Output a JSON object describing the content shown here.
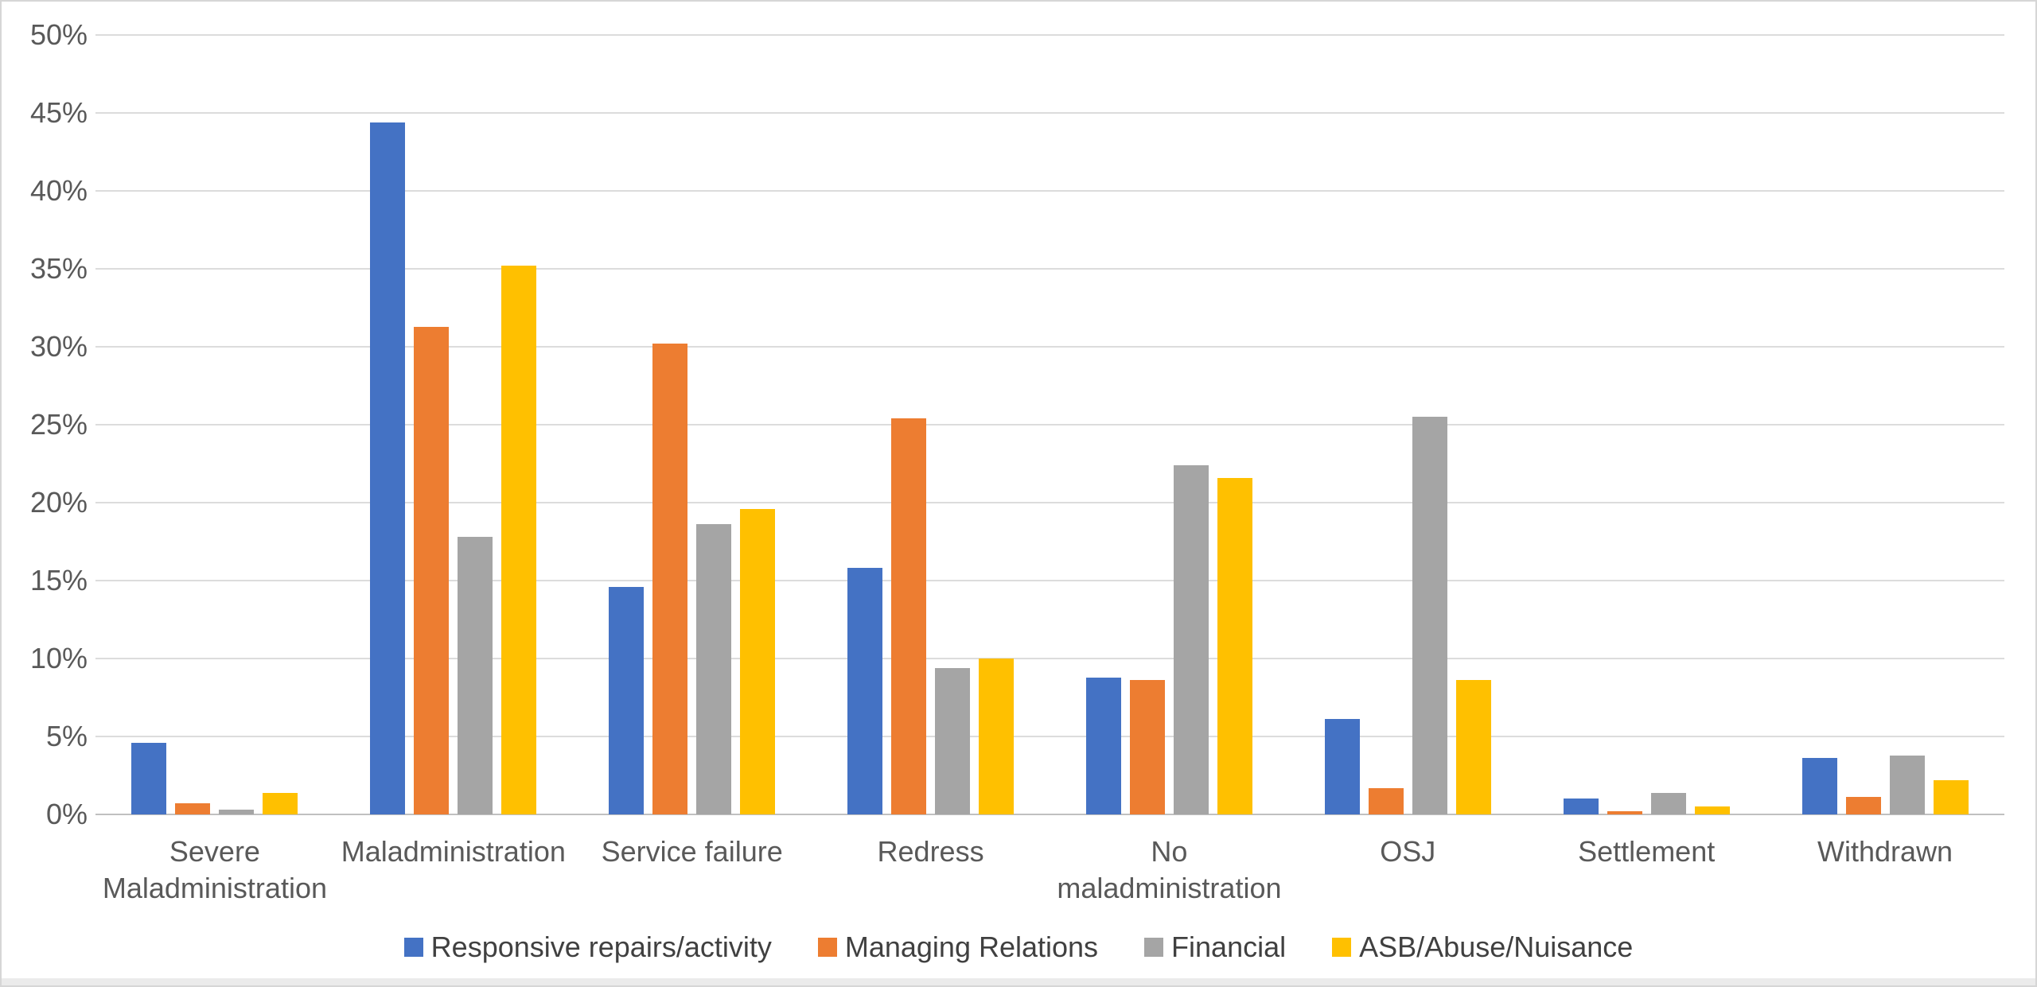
{
  "chart_data": {
    "type": "bar",
    "title": "",
    "xlabel": "",
    "ylabel": "",
    "ylim": [
      0,
      50
    ],
    "ytick_step": 5,
    "yticks": [
      "0%",
      "5%",
      "10%",
      "15%",
      "20%",
      "25%",
      "30%",
      "35%",
      "40%",
      "45%",
      "50%"
    ],
    "grid": true,
    "legend_position": "bottom",
    "categories": [
      "Severe Maladministration",
      "Maladministration",
      "Service failure",
      "Redress",
      "No maladministration",
      "OSJ",
      "Settlement",
      "Withdrawn"
    ],
    "series": [
      {
        "name": "Responsive repairs/activity",
        "color": "#4472C4",
        "values": [
          4.6,
          44.4,
          14.6,
          15.8,
          8.8,
          6.1,
          1.0,
          3.6
        ]
      },
      {
        "name": "Managing Relations",
        "color": "#ED7D31",
        "values": [
          0.7,
          31.3,
          30.2,
          25.4,
          8.6,
          1.7,
          0.2,
          1.1
        ]
      },
      {
        "name": "Financial",
        "color": "#A5A5A5",
        "values": [
          0.3,
          17.8,
          18.6,
          9.4,
          22.4,
          25.5,
          1.4,
          3.8
        ]
      },
      {
        "name": "ASB/Abuse/Nuisance",
        "color": "#FFC000",
        "values": [
          1.4,
          35.2,
          19.6,
          10.0,
          21.6,
          8.6,
          0.5,
          2.2
        ]
      }
    ]
  },
  "colors": {
    "gridline": "#dcdcdc",
    "axis_line": "#c0c0c0",
    "tick_text": "#595959",
    "legend_text": "#404040",
    "page_border": "#d6d6d6",
    "bottom_strip": "#ebebeb"
  }
}
